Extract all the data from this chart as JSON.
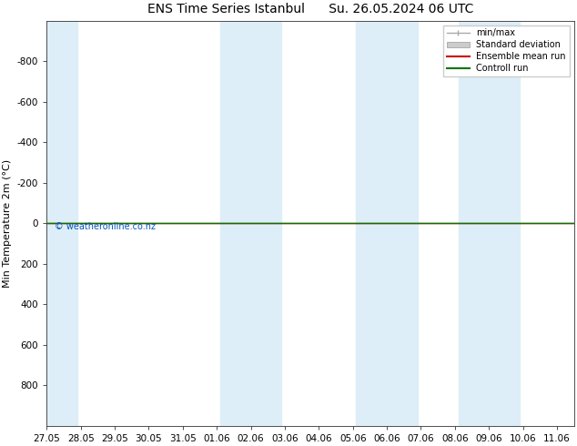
{
  "title": "ENS Time Series Istanbul      Su. 26.05.2024 06 UTC",
  "ylabel": "Min Temperature 2m (°C)",
  "ylim_bottom": 1000,
  "ylim_top": -1000,
  "yticks": [
    -800,
    -600,
    -400,
    -200,
    0,
    200,
    400,
    600,
    800
  ],
  "xlim": [
    0,
    15.5
  ],
  "xtick_labels": [
    "27.05",
    "28.05",
    "29.05",
    "30.05",
    "31.05",
    "01.06",
    "02.06",
    "03.06",
    "04.06",
    "05.06",
    "06.06",
    "07.06",
    "08.06",
    "09.06",
    "10.06",
    "11.06"
  ],
  "xtick_positions": [
    0,
    1,
    2,
    3,
    4,
    5,
    6,
    7,
    8,
    9,
    10,
    11,
    12,
    13,
    14,
    15
  ],
  "blue_bands": [
    [
      0,
      0.9
    ],
    [
      5.1,
      6.9
    ],
    [
      9.1,
      10.9
    ],
    [
      12.1,
      13.9
    ]
  ],
  "green_line_y": 0,
  "red_line_y": 0,
  "watermark": "© weatheronline.co.nz",
  "background_color": "#ffffff",
  "plot_bg_color": "#ffffff",
  "band_color": "#ddeef8",
  "legend_labels": [
    "min/max",
    "Standard deviation",
    "Ensemble mean run",
    "Controll run"
  ],
  "legend_line_colors": [
    "#aaaaaa",
    "#cccccc",
    "#cc0000",
    "#007700"
  ],
  "title_fontsize": 10,
  "axis_fontsize": 8,
  "tick_fontsize": 7.5,
  "watermark_color": "#0055bb"
}
